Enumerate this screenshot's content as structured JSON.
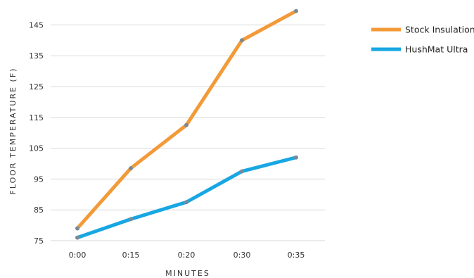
{
  "chart_data": {
    "type": "line",
    "title": "",
    "xlabel": "MINUTES",
    "ylabel": "FLOOR TEMPERATURE (F)",
    "categories": [
      "0:00",
      "0:15",
      "0:20",
      "0:30",
      "0:35"
    ],
    "yticks": [
      75,
      85,
      95,
      105,
      115,
      125,
      135,
      145
    ],
    "ylim": [
      75,
      150
    ],
    "grid": true,
    "legend_position": "top-right",
    "series": [
      {
        "name": "Stock Insulation",
        "color": "#F39A38",
        "values": [
          79,
          98.5,
          112.5,
          140,
          149.5
        ]
      },
      {
        "name": "HushMat Ultra",
        "color": "#17A7E2",
        "values": [
          76,
          82,
          87.5,
          97.5,
          102
        ]
      }
    ],
    "marker_color": "#7B8A97",
    "gridline_color": "#D9D9D9"
  }
}
